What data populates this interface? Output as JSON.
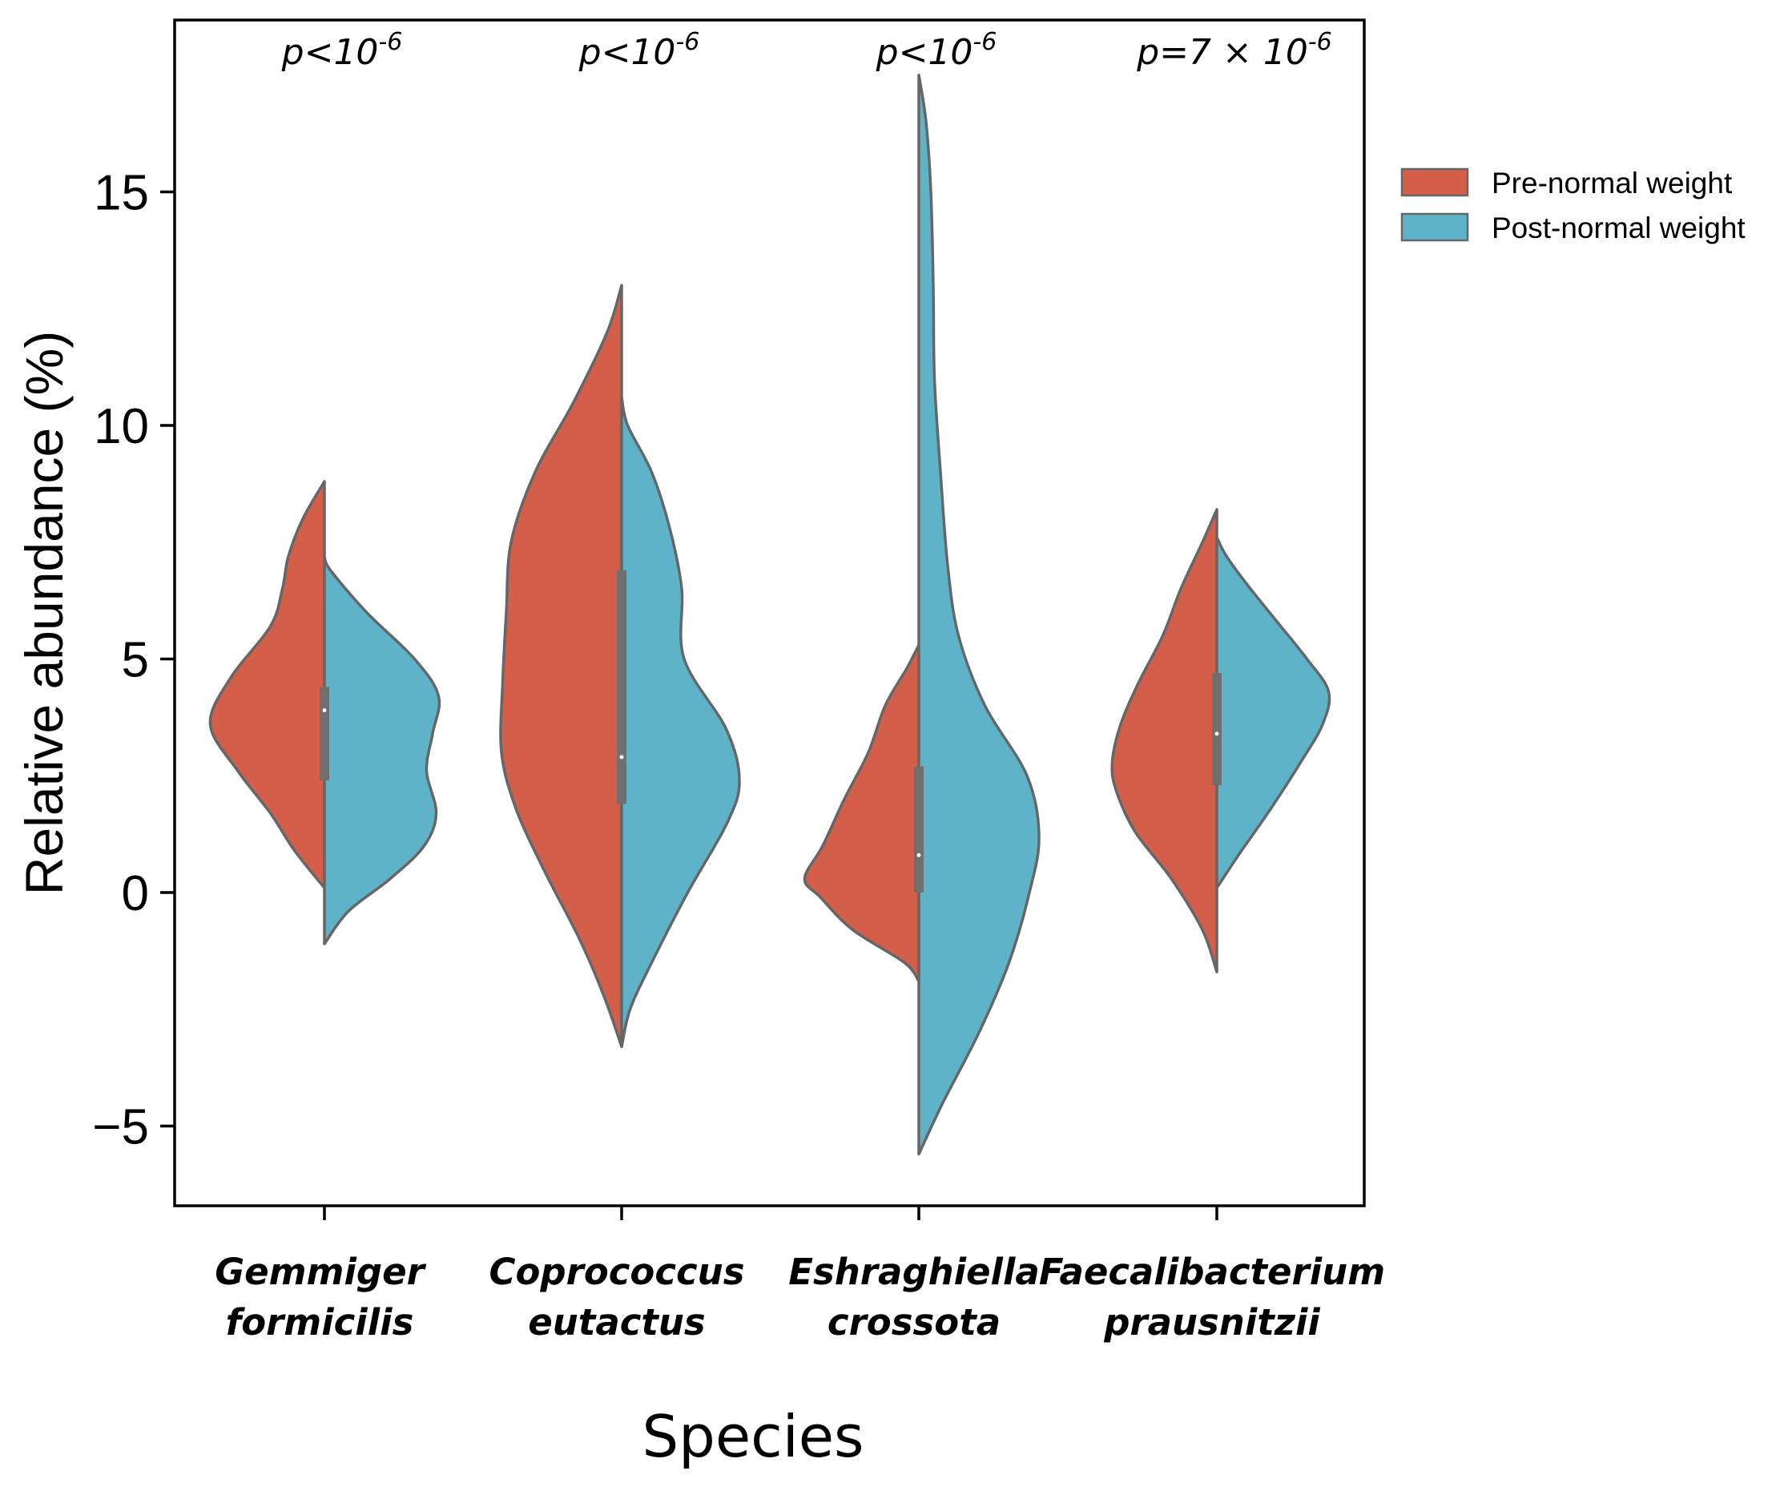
{
  "chart_data": {
    "type": "violin",
    "split": true,
    "xlabel": "Species",
    "ylabel": "Relative abundance (%)",
    "ylim": [
      -6.8,
      18.6
    ],
    "yticks": [
      -5,
      0,
      5,
      10,
      15
    ],
    "ytick_labels": [
      "−5",
      "0",
      "5",
      "10",
      "15"
    ],
    "legend": {
      "placement": "outside-right-top",
      "entries": [
        {
          "label": "Pre-normal weight",
          "color": "#d35f4a"
        },
        {
          "label": "Post-normal weight",
          "color": "#5fb3c8"
        }
      ]
    },
    "categories": [
      {
        "label_lines": [
          "Gemmiger",
          "formicilis"
        ],
        "p_value": {
          "prefix": "p<10",
          "exponent": "-6"
        },
        "pre": {
          "range": [
            0.1,
            8.8
          ],
          "profile": [
            [
              0.1,
              0.0
            ],
            [
              0.9,
              0.25
            ],
            [
              1.7,
              0.45
            ],
            [
              2.6,
              0.72
            ],
            [
              3.6,
              0.95
            ],
            [
              4.6,
              0.78
            ],
            [
              5.7,
              0.45
            ],
            [
              6.5,
              0.35
            ],
            [
              7.2,
              0.3
            ],
            [
              8.0,
              0.18
            ],
            [
              8.8,
              0.0
            ]
          ]
        },
        "post": {
          "range": [
            -1.1,
            7.2
          ],
          "profile": [
            [
              -1.1,
              0.0
            ],
            [
              -0.4,
              0.2
            ],
            [
              0.3,
              0.55
            ],
            [
              1.0,
              0.83
            ],
            [
              1.7,
              0.93
            ],
            [
              2.6,
              0.85
            ],
            [
              3.4,
              0.9
            ],
            [
              4.2,
              0.95
            ],
            [
              5.0,
              0.75
            ],
            [
              6.0,
              0.35
            ],
            [
              6.9,
              0.05
            ],
            [
              7.2,
              0.0
            ]
          ]
        },
        "box": {
          "q1": 2.4,
          "median": 3.9,
          "q3": 4.4
        }
      },
      {
        "label_lines": [
          "Coprococcus",
          "eutactus"
        ],
        "p_value": {
          "prefix": "p<10",
          "exponent": "-6"
        },
        "pre": {
          "range": [
            -3.3,
            13.0
          ],
          "profile": [
            [
              -3.3,
              0.0
            ],
            [
              -2.2,
              0.15
            ],
            [
              -1.0,
              0.35
            ],
            [
              0.5,
              0.65
            ],
            [
              1.8,
              0.88
            ],
            [
              3.0,
              1.0
            ],
            [
              4.5,
              0.99
            ],
            [
              6.0,
              0.96
            ],
            [
              7.5,
              0.92
            ],
            [
              9.0,
              0.72
            ],
            [
              10.5,
              0.4
            ],
            [
              12.0,
              0.12
            ],
            [
              13.0,
              0.0
            ]
          ]
        },
        "post": {
          "range": [
            -3.3,
            10.6
          ],
          "profile": [
            [
              -3.3,
              0.0
            ],
            [
              -2.5,
              0.07
            ],
            [
              -1.5,
              0.25
            ],
            [
              0.0,
              0.55
            ],
            [
              1.5,
              0.88
            ],
            [
              2.4,
              0.98
            ],
            [
              3.5,
              0.87
            ],
            [
              5.0,
              0.52
            ],
            [
              6.5,
              0.5
            ],
            [
              7.8,
              0.4
            ],
            [
              9.0,
              0.25
            ],
            [
              10.0,
              0.05
            ],
            [
              10.6,
              0.0
            ]
          ]
        },
        "box": {
          "q1": 1.9,
          "median": 2.9,
          "q3": 6.9
        }
      },
      {
        "label_lines": [
          "Eshraghiella",
          "crossota"
        ],
        "p_value": {
          "prefix": "p<10",
          "exponent": "-6"
        },
        "pre": {
          "range": [
            -1.9,
            5.3
          ],
          "profile": [
            [
              -1.9,
              0.0
            ],
            [
              -1.5,
              0.12
            ],
            [
              -0.8,
              0.55
            ],
            [
              -0.1,
              0.82
            ],
            [
              0.3,
              0.95
            ],
            [
              1.0,
              0.8
            ],
            [
              2.0,
              0.62
            ],
            [
              3.0,
              0.42
            ],
            [
              4.0,
              0.28
            ],
            [
              4.8,
              0.1
            ],
            [
              5.3,
              0.0
            ]
          ]
        },
        "post": {
          "range": [
            -5.6,
            17.5
          ],
          "profile": [
            [
              -5.6,
              0.0
            ],
            [
              -4.5,
              0.2
            ],
            [
              -3.0,
              0.5
            ],
            [
              -1.5,
              0.75
            ],
            [
              0.0,
              0.92
            ],
            [
              1.2,
              1.0
            ],
            [
              2.5,
              0.9
            ],
            [
              4.0,
              0.55
            ],
            [
              5.5,
              0.33
            ],
            [
              7.0,
              0.24
            ],
            [
              9.0,
              0.18
            ],
            [
              11.0,
              0.13
            ],
            [
              13.0,
              0.12
            ],
            [
              15.0,
              0.1
            ],
            [
              16.5,
              0.06
            ],
            [
              17.5,
              0.0
            ]
          ]
        },
        "box": {
          "q1": 0.0,
          "median": 0.8,
          "q3": 2.7
        }
      },
      {
        "label_lines": [
          "Faecalibacterium",
          "prausnitzii"
        ],
        "p_value": {
          "prefix": "p=7 × 10",
          "exponent": "-6"
        },
        "pre": {
          "range": [
            -1.7,
            8.2
          ],
          "profile": [
            [
              -1.7,
              0.0
            ],
            [
              -0.8,
              0.12
            ],
            [
              0.3,
              0.38
            ],
            [
              1.3,
              0.68
            ],
            [
              2.2,
              0.84
            ],
            [
              2.8,
              0.87
            ],
            [
              3.6,
              0.8
            ],
            [
              4.5,
              0.65
            ],
            [
              5.5,
              0.45
            ],
            [
              6.5,
              0.3
            ],
            [
              7.5,
              0.12
            ],
            [
              8.2,
              0.0
            ]
          ]
        },
        "post": {
          "range": [
            0.1,
            7.6
          ],
          "profile": [
            [
              0.1,
              0.0
            ],
            [
              0.8,
              0.18
            ],
            [
              1.8,
              0.45
            ],
            [
              2.8,
              0.7
            ],
            [
              3.6,
              0.88
            ],
            [
              4.3,
              0.93
            ],
            [
              5.0,
              0.75
            ],
            [
              5.8,
              0.5
            ],
            [
              6.6,
              0.25
            ],
            [
              7.2,
              0.08
            ],
            [
              7.6,
              0.0
            ]
          ]
        },
        "box": {
          "q1": 2.3,
          "median": 3.4,
          "q3": 4.7
        }
      }
    ]
  }
}
